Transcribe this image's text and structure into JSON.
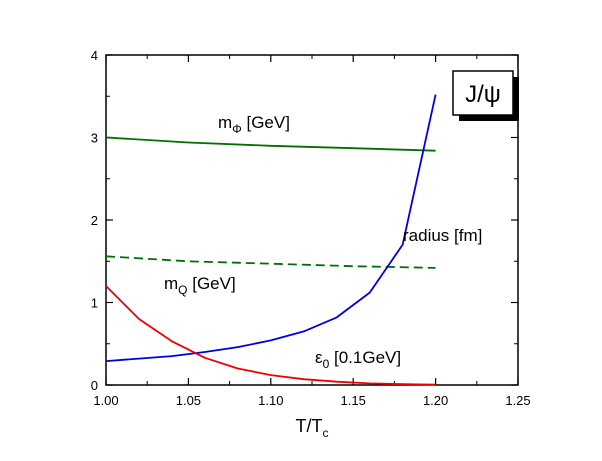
{
  "chart_data": {
    "type": "line",
    "xlabel": {
      "main": "T/T",
      "sub": "c"
    },
    "xlim": [
      1.0,
      1.25
    ],
    "ylim": [
      0,
      4
    ],
    "x_ticks": [
      1.0,
      1.05,
      1.1,
      1.15,
      1.2,
      1.25
    ],
    "x_tick_labels": [
      "1.00",
      "1.05",
      "1.10",
      "1.15",
      "1.20",
      "1.25"
    ],
    "y_ticks": [
      0,
      1,
      2,
      3,
      4
    ],
    "y_tick_labels": [
      "0",
      "1",
      "2",
      "3",
      "4"
    ],
    "grid": false,
    "badge": "J/ψ",
    "series": [
      {
        "id": "m_phi",
        "label": {
          "main": "m",
          "sub": "Φ",
          "tail": " [GeV]"
        },
        "color": "#007000",
        "dash": "solid",
        "x": [
          1.0,
          1.05,
          1.1,
          1.15,
          1.2
        ],
        "y": [
          3.0,
          2.94,
          2.9,
          2.87,
          2.84
        ]
      },
      {
        "id": "m_q",
        "label": {
          "main": "m",
          "sub": "Q",
          "tail": " [GeV]"
        },
        "color": "#007000",
        "dash": "dashed",
        "x": [
          1.0,
          1.05,
          1.1,
          1.15,
          1.2
        ],
        "y": [
          1.56,
          1.5,
          1.47,
          1.44,
          1.42
        ]
      },
      {
        "id": "radius",
        "label": {
          "main": "radius [fm]",
          "sub": "",
          "tail": ""
        },
        "color": "#0000dd",
        "dash": "solid",
        "x": [
          1.0,
          1.02,
          1.04,
          1.06,
          1.08,
          1.1,
          1.12,
          1.14,
          1.16,
          1.18,
          1.2
        ],
        "y": [
          0.29,
          0.32,
          0.35,
          0.4,
          0.46,
          0.54,
          0.65,
          0.82,
          1.12,
          1.7,
          3.52
        ]
      },
      {
        "id": "epsilon0",
        "label": {
          "main": "ε",
          "sub": "0",
          "tail": " [0.1GeV]"
        },
        "color": "#ee0000",
        "dash": "solid",
        "x": [
          1.0,
          1.02,
          1.04,
          1.06,
          1.08,
          1.1,
          1.12,
          1.14,
          1.16,
          1.18,
          1.2
        ],
        "y": [
          1.2,
          0.8,
          0.53,
          0.33,
          0.2,
          0.12,
          0.07,
          0.04,
          0.02,
          0.01,
          0.005
        ]
      }
    ]
  }
}
